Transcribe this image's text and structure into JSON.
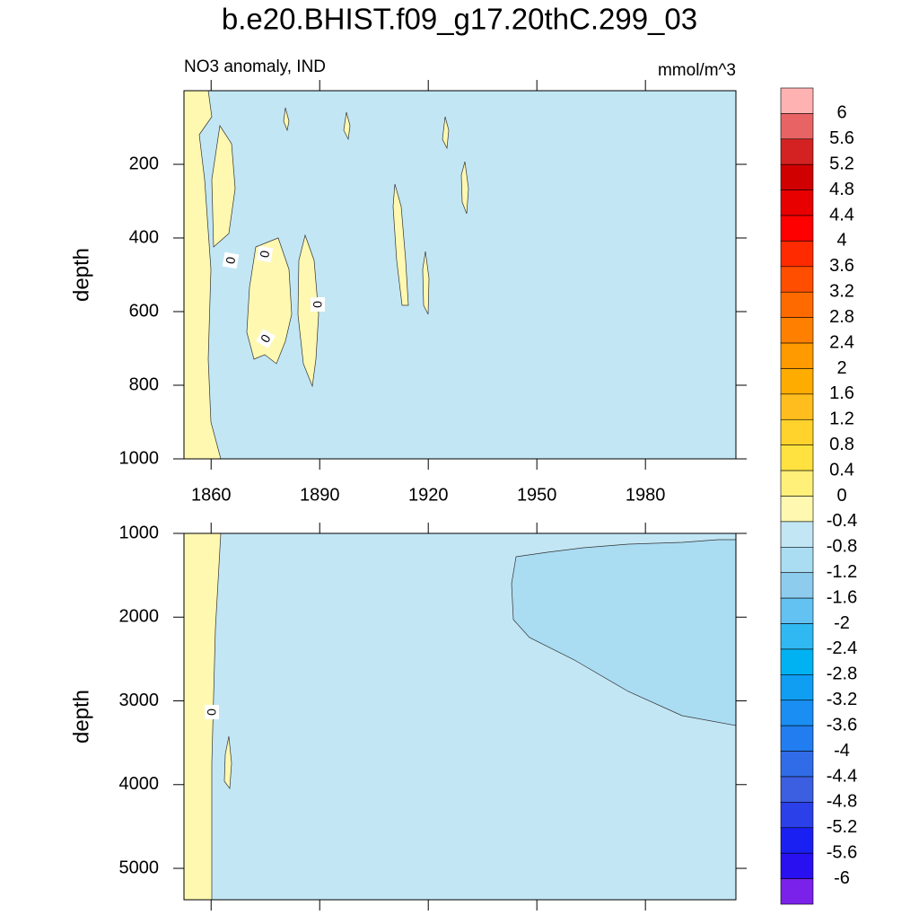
{
  "chart_data": {
    "type": "contour",
    "title": "b.e20.BHIST.f09_g17.20thC.299_03",
    "left_label": "NO3 anomaly, IND",
    "right_label": "mmol/m^3",
    "contour_label": "0",
    "xlim": [
      1852.5,
      2005
    ],
    "xticks": [
      1860,
      1890,
      1920,
      1950,
      1980
    ],
    "panels": [
      {
        "ylabel": "depth",
        "ylim": [
          0,
          1000
        ],
        "yticks": [
          200,
          400,
          600,
          800,
          1000
        ]
      },
      {
        "ylabel": "depth",
        "ylim": [
          1000,
          5375
        ],
        "yticks": [
          1000,
          2000,
          3000,
          4000,
          5000
        ]
      }
    ],
    "colorbar": {
      "levels": [
        6,
        5.6,
        5.2,
        4.8,
        4.4,
        4,
        3.6,
        3.2,
        2.8,
        2.4,
        2,
        1.6,
        1.2,
        0.8,
        0.4,
        0,
        -0.4,
        -0.8,
        -1.2,
        -1.6,
        -2,
        -2.4,
        -2.8,
        -3.2,
        -3.6,
        -4,
        -4.4,
        -4.8,
        -5.2,
        -5.6,
        -6
      ],
      "colors": [
        "#ffb2b2",
        "#e86464",
        "#d42222",
        "#d00000",
        "#e80000",
        "#ff0000",
        "#ff2a00",
        "#ff4e00",
        "#ff6a00",
        "#ff8000",
        "#ff9a00",
        "#ffac00",
        "#ffbe1e",
        "#ffd22c",
        "#ffe240",
        "#fff07a",
        "#fff8b0",
        "#c2e6f4",
        "#aadcf2",
        "#8ecced",
        "#64c2f2",
        "#30b8f2",
        "#00b2f2",
        "#109ef2",
        "#1a8ef2",
        "#227ef0",
        "#306ce8",
        "#3c5ee0",
        "#2c40ea",
        "#1a20f2",
        "#2810f0",
        "#7a22ea"
      ]
    }
  }
}
